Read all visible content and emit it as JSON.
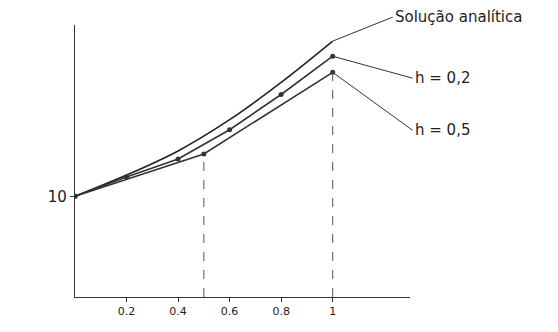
{
  "chart_data": {
    "type": "line",
    "x": [
      0,
      0.2,
      0.4,
      0.5,
      0.6,
      0.8,
      1
    ],
    "series": [
      {
        "name": "Solução analítica",
        "color": "#222222",
        "marker": "none",
        "line_style": "solid",
        "values": [
          10,
          12.1,
          14.5,
          null,
          17.6,
          21.3,
          25.4
        ]
      },
      {
        "name": "h = 0,2",
        "color": "#333333",
        "marker": "circle",
        "line_style": "solid",
        "values": [
          10,
          11.9,
          13.7,
          null,
          16.6,
          20.1,
          23.9
        ]
      },
      {
        "name": "h = 0,5",
        "color": "#333333",
        "marker": "circle",
        "line_style": "solid",
        "values": [
          10,
          null,
          null,
          14.2,
          null,
          null,
          22.3
        ]
      }
    ],
    "xlim": [
      0,
      1.3
    ],
    "xticks": [
      0.2,
      0.4,
      0.6,
      0.8,
      1
    ],
    "ylim": [
      0,
      27
    ],
    "yticks": [
      10
    ],
    "grid": false,
    "legend": "none"
  }
}
